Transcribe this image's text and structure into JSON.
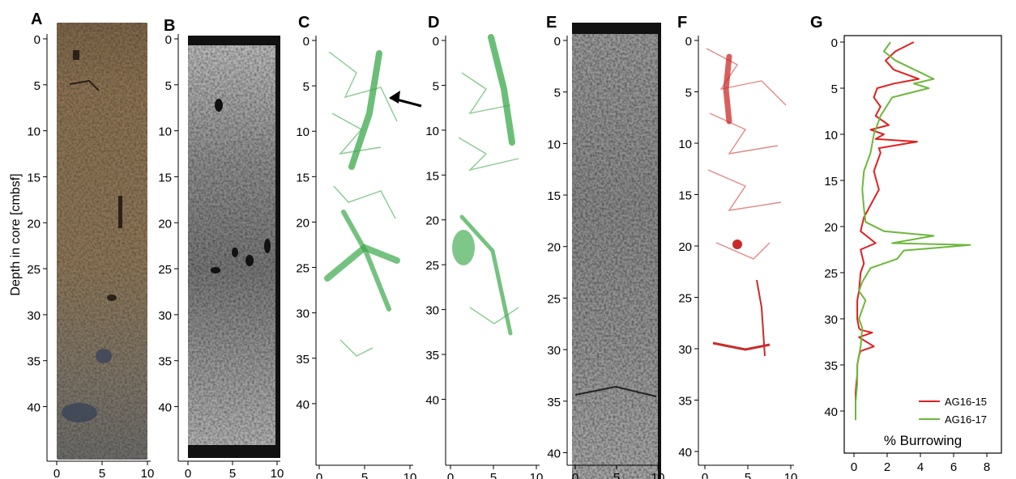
{
  "figure": {
    "ylabel": "Depth in core [cmbsf]"
  },
  "panels": [
    {
      "id": "A",
      "label": "A",
      "kind": "photo",
      "xticks": [
        "0",
        "5",
        "10"
      ],
      "yticks": [
        "0",
        "5",
        "10",
        "15",
        "20",
        "25",
        "30",
        "35",
        "40"
      ]
    },
    {
      "id": "B",
      "label": "B",
      "kind": "ct",
      "xticks": [
        "0",
        "5",
        "10"
      ],
      "yticks": [
        "0",
        "5",
        "10",
        "15",
        "20",
        "25",
        "30",
        "35",
        "40"
      ]
    },
    {
      "id": "C",
      "label": "C",
      "kind": "render-green",
      "xticks": [
        "0",
        "5",
        "10"
      ],
      "yticks": [
        "0",
        "5",
        "10",
        "15",
        "20",
        "25",
        "30",
        "35",
        "40"
      ]
    },
    {
      "id": "D",
      "label": "D",
      "kind": "render-green",
      "xticks": [
        "0",
        "5",
        "10"
      ],
      "yticks": [
        "0",
        "5",
        "10",
        "15",
        "20",
        "25",
        "30",
        "35",
        "40"
      ]
    },
    {
      "id": "E",
      "label": "E",
      "kind": "ct",
      "xticks": [
        "0",
        "5",
        "10"
      ],
      "yticks": [
        "0",
        "5",
        "10",
        "15",
        "20",
        "25",
        "30",
        "35",
        "40"
      ]
    },
    {
      "id": "F",
      "label": "F",
      "kind": "render-red",
      "xticks": [
        "0",
        "5",
        "10"
      ],
      "yticks": [
        "0",
        "5",
        "10",
        "15",
        "20",
        "25",
        "30",
        "35",
        "40"
      ]
    }
  ],
  "colors": {
    "red": "#e02020",
    "green": "#6cb83c",
    "render_green": "#3aa84a",
    "render_red": "#cc2a2a"
  },
  "chart_data": {
    "type": "line",
    "panel_label": "G",
    "xlabel": "% Burrowing",
    "ylabel": "Depth in core [cmbsf]",
    "xlim": [
      0,
      8
    ],
    "ylim": [
      41,
      -1
    ],
    "xticks": [
      "0",
      "2",
      "4",
      "6",
      "8"
    ],
    "yticks": [
      "0",
      "5",
      "10",
      "15",
      "20",
      "25",
      "30",
      "35",
      "40"
    ],
    "legend_position": "bottom-right",
    "series": [
      {
        "name": "AG16-15",
        "color": "#e02020",
        "x": [
          3.6,
          2.5,
          1.9,
          2.4,
          3.9,
          2.4,
          1.4,
          1.2,
          1.6,
          1.3,
          2.1,
          1.0,
          1.8,
          1.3,
          3.8,
          1.5,
          1.6,
          1.2,
          1.5,
          0.6,
          0.4,
          1.3,
          0.4,
          0.6,
          0.4,
          0.3,
          0.2,
          0.2,
          0.3,
          0.4,
          1.1,
          0.3,
          1.2,
          0.4,
          0.3,
          0.2,
          0.2,
          0.1,
          0.1
        ],
        "y": [
          0,
          1,
          2,
          3,
          4,
          4.5,
          5,
          6,
          7,
          8,
          9,
          9.5,
          10,
          10.5,
          10.8,
          11.5,
          12,
          14,
          16,
          19,
          20.5,
          21.8,
          22.5,
          24,
          25,
          27,
          28,
          30,
          31,
          31.2,
          31.5,
          32,
          33,
          33.5,
          34,
          35,
          36,
          38,
          40
        ]
      },
      {
        "name": "AG16-17",
        "color": "#6cb83c",
        "x": [
          2.2,
          1.8,
          2.5,
          4.8,
          3.6,
          4.5,
          2.3,
          1.6,
          1.2,
          1.0,
          0.6,
          0.5,
          0.6,
          0.7,
          1.8,
          4.8,
          2.3,
          7.0,
          3.0,
          2.6,
          1.0,
          0.5,
          0.3,
          0.7,
          0.3,
          0.5,
          0.4,
          0.2,
          0.2,
          0.1,
          0.1,
          0.1
        ],
        "y": [
          0,
          1,
          2,
          4,
          4.5,
          5,
          6,
          8,
          10,
          12,
          14,
          16,
          18,
          19.5,
          20.5,
          21,
          21.8,
          22,
          22.6,
          23.5,
          24.5,
          26,
          27,
          28,
          30,
          31,
          33,
          35,
          37,
          39,
          40,
          41
        ]
      }
    ]
  }
}
